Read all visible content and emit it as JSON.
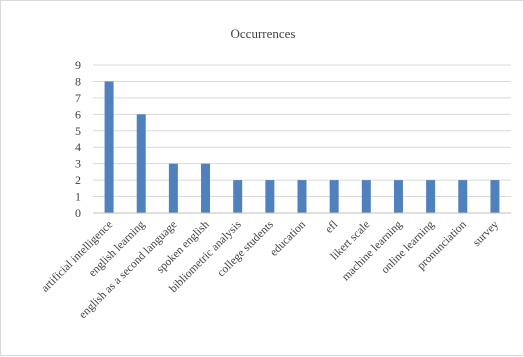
{
  "chart_data": {
    "type": "bar",
    "title": "Occurrences",
    "xlabel": "",
    "ylabel": "",
    "ylim": [
      0,
      9
    ],
    "y_ticks": [
      "0",
      "1",
      "2",
      "3",
      "4",
      "5",
      "6",
      "7",
      "8",
      "9"
    ],
    "grid": true,
    "legend": "none",
    "bar_color": "#4f81bd",
    "categories": [
      "artificial intelligence",
      "english learning",
      "english as a second language",
      "spoken english",
      "bibliometric analysis",
      "college students",
      "education",
      "efl",
      "likert scale",
      "machine learning",
      "online learning",
      "pronunciation",
      "survey"
    ],
    "values": [
      8,
      6,
      3,
      3,
      2,
      2,
      2,
      2,
      2,
      2,
      2,
      2,
      2
    ]
  }
}
